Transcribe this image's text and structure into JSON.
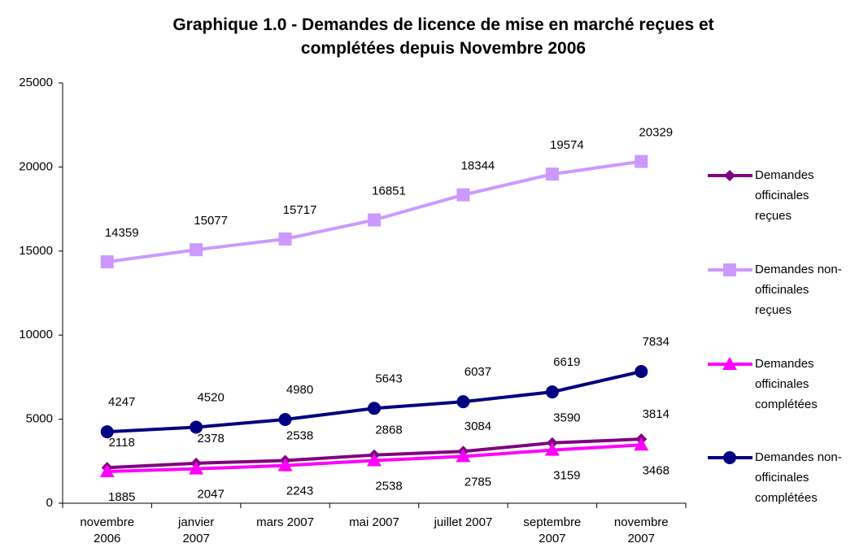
{
  "chart_data": {
    "type": "line",
    "title": "Graphique 1.0 - Demandes de licence de mise en marché reçues et complétées depuis Novembre 2006",
    "categories": [
      "novembre 2006",
      "janvier 2007",
      "mars 2007",
      "mai 2007",
      "juillet 2007",
      "septembre 2007",
      "novembre 2007"
    ],
    "series": [
      {
        "name": "Demandes officinales reçues",
        "color": "#800080",
        "marker": "diamond",
        "values": [
          2118,
          2378,
          2538,
          2868,
          3084,
          3590,
          3814
        ]
      },
      {
        "name": "Demandes non-officinales reçues",
        "color": "#cc99ff",
        "marker": "square",
        "values": [
          14359,
          15077,
          15717,
          16851,
          18344,
          19574,
          20329
        ]
      },
      {
        "name": "Demandes officinales complétées",
        "color": "#ff00ff",
        "marker": "triangle",
        "values": [
          1885,
          2047,
          2243,
          2538,
          2785,
          3159,
          3468
        ]
      },
      {
        "name": "Demandes non-officinales complétées",
        "color": "#000080",
        "marker": "circle",
        "values": [
          4247,
          4520,
          4980,
          5643,
          6037,
          6619,
          7834
        ]
      }
    ],
    "ylim": [
      0,
      25000
    ],
    "yticks": [
      0,
      5000,
      10000,
      15000,
      20000,
      25000
    ],
    "grid": false,
    "legend": "right"
  }
}
